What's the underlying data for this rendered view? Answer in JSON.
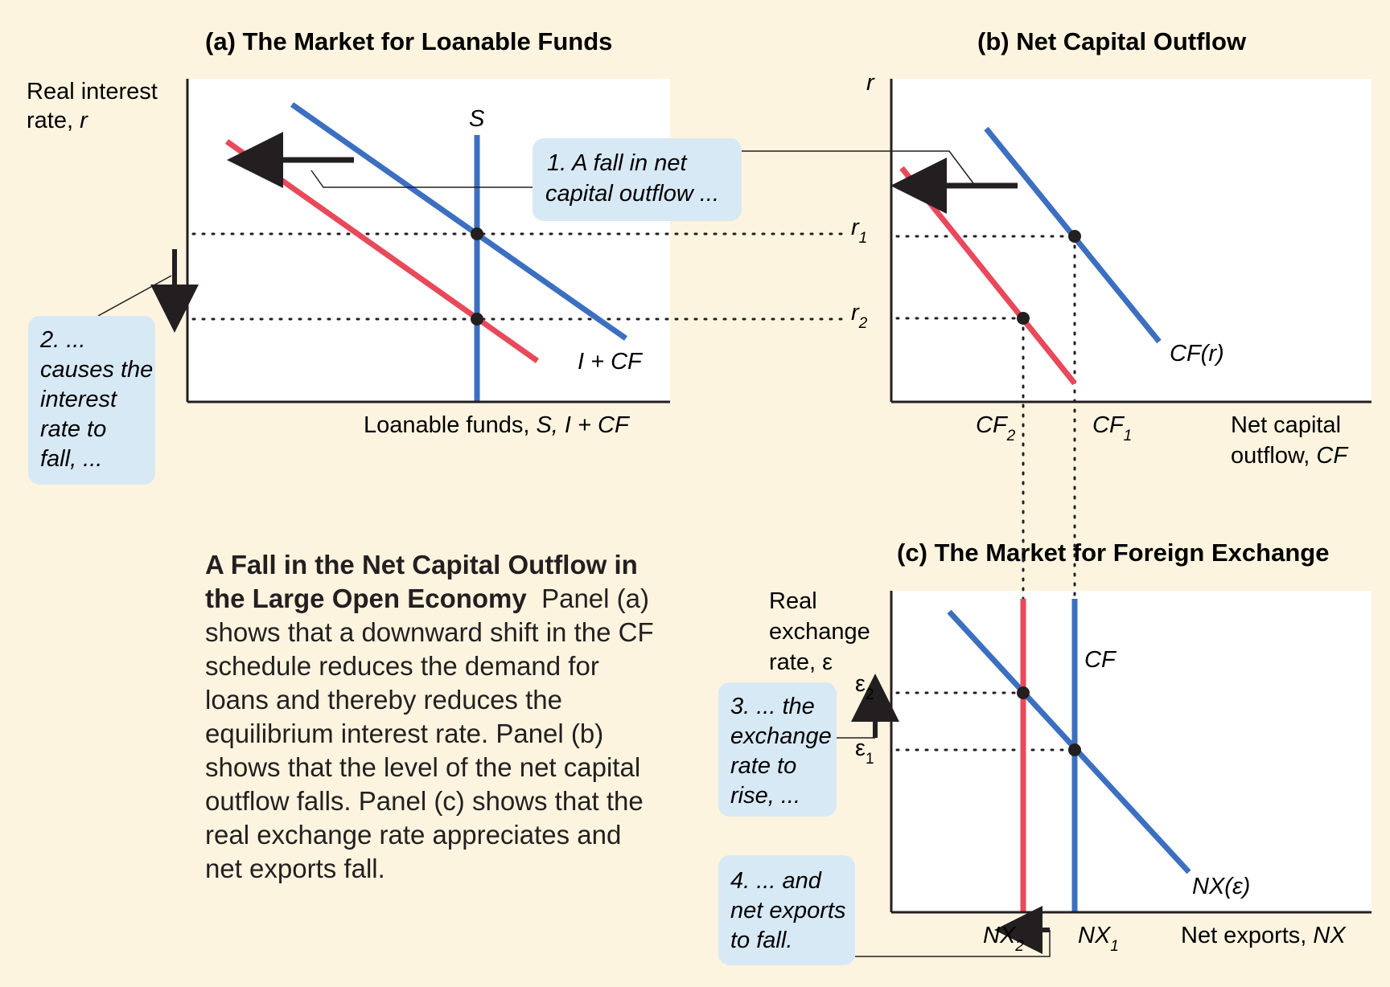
{
  "panel_a": {
    "title": "(a) The Market for Loanable Funds",
    "y_label_1": "Real interest",
    "y_label_2": "rate, ",
    "y_label_var": "r",
    "x_label": "Loanable funds, ",
    "x_label_var": "S, I + CF",
    "s_label": "S",
    "demand_label": "I + CF",
    "callout_1": [
      "1. A fall in net",
      "capital outflow ..."
    ],
    "callout_2": [
      "2. ...",
      "causes the",
      "interest",
      "rate to",
      "fall, ..."
    ]
  },
  "panel_b": {
    "title": "(b) Net Capital Outflow",
    "y_label": "r",
    "r1": "r",
    "r1_sub": "1",
    "r2": "r",
    "r2_sub": "2",
    "cf2": "CF",
    "cf2_sub": "2",
    "cf1": "CF",
    "cf1_sub": "1",
    "curve_label": "CF(r)",
    "x_label_1": "Net capital",
    "x_label_2": "outflow, ",
    "x_label_var": "CF"
  },
  "panel_c": {
    "title": "(c) The Market for Foreign Exchange",
    "y_label_1": "Real",
    "y_label_2": "exchange",
    "y_label_3": "rate, ε",
    "e2": "ε",
    "e2_sub": "2",
    "e1": "ε",
    "e1_sub": "1",
    "cf_label": "CF",
    "nx_curve_label": "NX(ε)",
    "nx2": "NX",
    "nx2_sub": "2",
    "nx1": "NX",
    "nx1_sub": "1",
    "x_label": "Net exports, ",
    "x_label_var": "NX",
    "callout_3": [
      "3. ... the",
      "exchange",
      "rate to",
      "rise, ..."
    ],
    "callout_4": [
      "4. ... and",
      "net exports",
      "to fall."
    ]
  },
  "caption": {
    "heading": "A Fall in the Net Capital Outflow in the Large Open Economy",
    "body": "Panel (a) shows that a downward shift in the CF schedule reduces the demand for loans and thereby reduces the equilibrium interest rate. Panel (b) shows that the level of the net capital outflow falls. Panel (c) shows that the real exchange rate appreciates and net exports fall."
  },
  "colors": {
    "background": "#fdf4df",
    "panel": "#ffffff",
    "blue_curve": "#3c6fc0",
    "red_curve": "#e8495b",
    "callout": "#d8e9f6"
  }
}
